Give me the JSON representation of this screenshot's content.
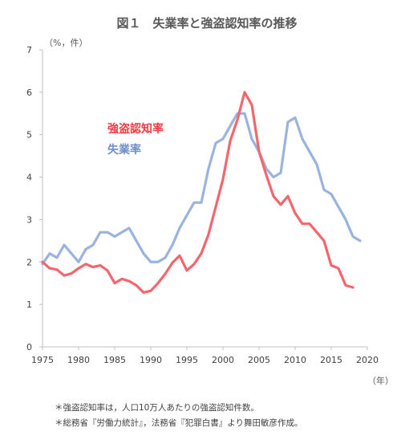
{
  "chart_data": {
    "type": "line",
    "title": "図１　失業率と強盗認知率の推移",
    "yunit": "（%，件）",
    "xunit": "（年）",
    "xlim": [
      1975,
      2020
    ],
    "ylim": [
      0,
      7
    ],
    "xticks": [
      1975,
      1980,
      1985,
      1990,
      1995,
      2000,
      2005,
      2010,
      2015,
      2020
    ],
    "yticks": [
      0,
      1,
      2,
      3,
      4,
      5,
      6,
      7
    ],
    "grid": false,
    "legend": "inline labels inside plot, upper-left",
    "series": [
      {
        "name": "強盗認知率",
        "color": "#f4666e",
        "x": [
          1975,
          1976,
          1977,
          1978,
          1979,
          1980,
          1981,
          1982,
          1983,
          1984,
          1985,
          1986,
          1987,
          1988,
          1989,
          1990,
          1991,
          1992,
          1993,
          1994,
          1995,
          1996,
          1997,
          1998,
          1999,
          2000,
          2001,
          2002,
          2003,
          2004,
          2005,
          2006,
          2007,
          2008,
          2009,
          2010,
          2011,
          2012,
          2013,
          2014,
          2015,
          2016,
          2017,
          2018
        ],
        "values": [
          2.0,
          1.85,
          1.82,
          1.68,
          1.73,
          1.85,
          1.95,
          1.88,
          1.92,
          1.8,
          1.5,
          1.6,
          1.55,
          1.45,
          1.28,
          1.32,
          1.5,
          1.72,
          1.98,
          2.15,
          1.8,
          1.95,
          2.2,
          2.65,
          3.3,
          3.95,
          4.85,
          5.35,
          6.0,
          5.7,
          4.6,
          4.05,
          3.55,
          3.35,
          3.55,
          3.15,
          2.9,
          2.9,
          2.7,
          2.5,
          1.92,
          1.85,
          1.45,
          1.4
        ]
      },
      {
        "name": "失業率",
        "color": "#9ab4df",
        "x": [
          1975,
          1976,
          1977,
          1978,
          1979,
          1980,
          1981,
          1982,
          1983,
          1984,
          1985,
          1986,
          1987,
          1988,
          1989,
          1990,
          1991,
          1992,
          1993,
          1994,
          1995,
          1996,
          1997,
          1998,
          1999,
          2000,
          2001,
          2002,
          2003,
          2004,
          2005,
          2006,
          2007,
          2008,
          2009,
          2010,
          2011,
          2012,
          2013,
          2014,
          2015,
          2016,
          2017,
          2018,
          2019
        ],
        "values": [
          1.95,
          2.2,
          2.1,
          2.4,
          2.2,
          2.0,
          2.3,
          2.4,
          2.7,
          2.7,
          2.6,
          2.7,
          2.8,
          2.5,
          2.2,
          2.0,
          2.0,
          2.1,
          2.4,
          2.8,
          3.1,
          3.4,
          3.4,
          4.2,
          4.8,
          4.9,
          5.2,
          5.5,
          5.5,
          4.9,
          4.6,
          4.2,
          4.0,
          4.1,
          5.3,
          5.4,
          4.9,
          4.6,
          4.3,
          3.7,
          3.6,
          3.3,
          3.0,
          2.6,
          2.5
        ]
      }
    ]
  },
  "notes": [
    "＊強盗認知率は，人口10万人あたりの強盗認知件数。",
    "＊総務省『労働力統計』，法務省『犯罪白書』より舞田敏彦作成。"
  ]
}
